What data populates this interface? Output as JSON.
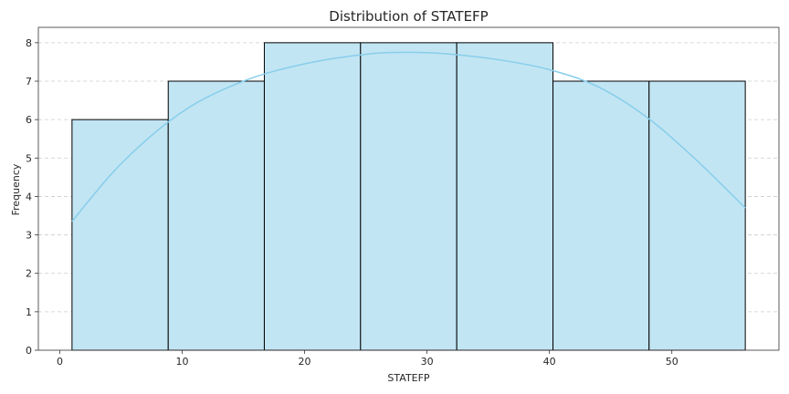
{
  "chart_data": {
    "type": "bar",
    "title": "Distribution of STATEFP",
    "xlabel": "STATEFP",
    "ylabel": "Frequency",
    "bins": [
      {
        "start": 1.0,
        "end": 8.86,
        "count": 6
      },
      {
        "start": 8.86,
        "end": 16.71,
        "count": 7
      },
      {
        "start": 16.71,
        "end": 24.57,
        "count": 8
      },
      {
        "start": 24.57,
        "end": 32.43,
        "count": 8
      },
      {
        "start": 32.43,
        "end": 40.29,
        "count": 8
      },
      {
        "start": 40.29,
        "end": 48.14,
        "count": 7
      },
      {
        "start": 48.14,
        "end": 56.0,
        "count": 7
      }
    ],
    "kde": {
      "x": [
        1,
        5,
        10,
        15,
        20,
        25,
        28.5,
        32,
        36,
        40,
        44,
        48,
        52,
        56
      ],
      "y": [
        3.35,
        4.85,
        6.2,
        7.0,
        7.45,
        7.7,
        7.75,
        7.7,
        7.55,
        7.3,
        6.85,
        6.05,
        4.95,
        3.7
      ]
    },
    "xlim": [
      -1.75,
      58.75
    ],
    "ylim": [
      0,
      8.4
    ],
    "xticks": [
      0,
      10,
      20,
      30,
      40,
      50
    ],
    "yticks": [
      0,
      1,
      2,
      3,
      4,
      5,
      6,
      7,
      8
    ],
    "grid": "y-dashed",
    "colors": {
      "bar_fill": "#c2e5f3",
      "bar_edge": "#000000",
      "kde_line": "#87ceeb",
      "grid": "#cccccc"
    }
  }
}
